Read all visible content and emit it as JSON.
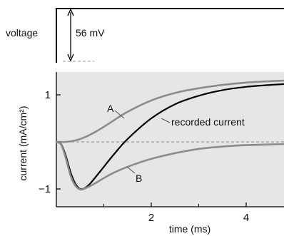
{
  "chart_data": [
    {
      "type": "line",
      "panel": "voltage",
      "ylabel": "voltage",
      "annotation": "56 mV",
      "step_value_mv": 56
    },
    {
      "type": "line",
      "panel": "current",
      "xlabel": "time (ms)",
      "ylabel": "current (mA/cm²)",
      "xlim": [
        0,
        5.0
      ],
      "ylim": [
        -1.3,
        1.3
      ],
      "x_ticks": [
        2,
        4
      ],
      "x_tick_labels": [
        "2",
        "4"
      ],
      "y_ticks": [
        1,
        -1
      ],
      "y_tick_labels": [
        "1",
        "−1"
      ],
      "zero_line": "dashed",
      "background": "#e6e6e6",
      "series": [
        {
          "name": "A",
          "color": "#8c8c8c",
          "x": [
            0,
            0.2,
            0.4,
            0.6,
            0.8,
            1.0,
            1.2,
            1.5,
            2.0,
            2.5,
            3.0,
            3.5,
            4.0,
            4.5,
            5.0
          ],
          "y": [
            0,
            0.0,
            0.03,
            0.1,
            0.2,
            0.32,
            0.45,
            0.64,
            0.88,
            1.04,
            1.14,
            1.21,
            1.26,
            1.29,
            1.31
          ]
        },
        {
          "name": "recorded current",
          "color": "#000000",
          "x": [
            0,
            0.1,
            0.2,
            0.3,
            0.4,
            0.5,
            0.6,
            0.7,
            0.8,
            1.0,
            1.2,
            1.5,
            2.0,
            2.5,
            3.0,
            3.5,
            4.0,
            4.5,
            5.0
          ],
          "y": [
            0,
            -0.05,
            -0.3,
            -0.65,
            -0.89,
            -1.0,
            -0.98,
            -0.9,
            -0.78,
            -0.53,
            -0.28,
            0.06,
            0.5,
            0.8,
            0.98,
            1.1,
            1.17,
            1.21,
            1.24
          ]
        },
        {
          "name": "B",
          "color": "#8c8c8c",
          "x": [
            0,
            0.1,
            0.2,
            0.3,
            0.4,
            0.5,
            0.6,
            0.8,
            1.0,
            1.2,
            1.5,
            2.0,
            2.5,
            3.0,
            3.5,
            4.0,
            5.0
          ],
          "y": [
            0,
            -0.06,
            -0.35,
            -0.72,
            -0.93,
            -1.01,
            -0.99,
            -0.89,
            -0.77,
            -0.66,
            -0.53,
            -0.36,
            -0.24,
            -0.15,
            -0.1,
            -0.07,
            -0.04
          ]
        }
      ],
      "labels": {
        "a": "A",
        "b": "B",
        "recorded": "recorded current"
      }
    }
  ]
}
